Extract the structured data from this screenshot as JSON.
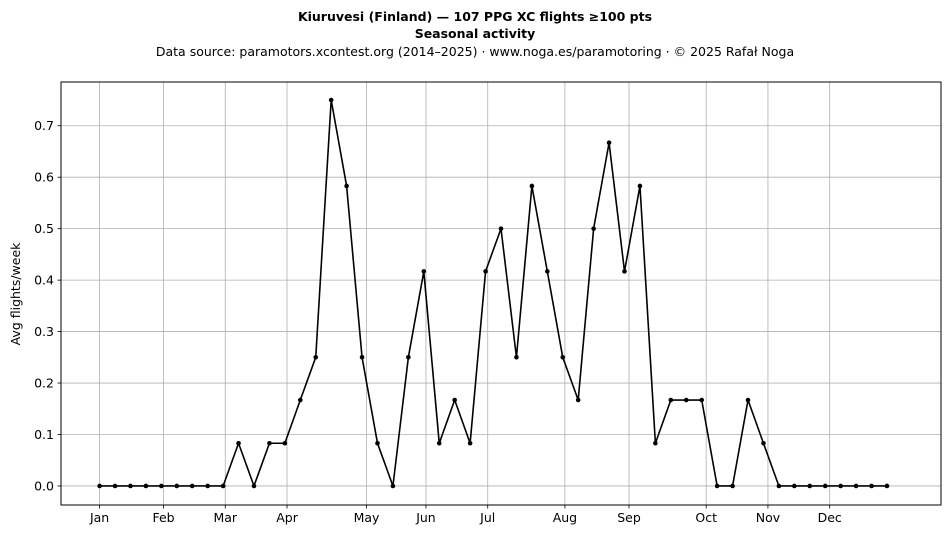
{
  "chart_data": {
    "type": "line",
    "title": "Kiuruvesi (Finland)  —  107 PPG XC flights ≥100 pts",
    "title_line2": "Seasonal activity",
    "subtitle": "Data source: paramotors.xcontest.org (2014–2025)  ·  www.noga.es/paramotoring  ·  © 2025 Rafał Noga",
    "xlabel": "",
    "ylabel": "Avg flights/week",
    "grid": true,
    "x_range": [
      -2.5,
      54.5
    ],
    "ylim": [
      -0.037,
      0.785
    ],
    "yticks": [
      0.0,
      0.1,
      0.2,
      0.3,
      0.4,
      0.5,
      0.6,
      0.7
    ],
    "ytick_labels": [
      "0.0",
      "0.1",
      "0.2",
      "0.3",
      "0.4",
      "0.5",
      "0.6",
      "0.7"
    ],
    "xticks": [
      {
        "label": "Jan",
        "x": 0
      },
      {
        "label": "Feb",
        "x": 4.14
      },
      {
        "label": "Mar",
        "x": 8.14
      },
      {
        "label": "Apr",
        "x": 12.14
      },
      {
        "label": "May",
        "x": 17.29
      },
      {
        "label": "Jun",
        "x": 21.14
      },
      {
        "label": "Jul",
        "x": 25.14
      },
      {
        "label": "Aug",
        "x": 30.14
      },
      {
        "label": "Sep",
        "x": 34.29
      },
      {
        "label": "Oct",
        "x": 39.29
      },
      {
        "label": "Nov",
        "x": 43.29
      },
      {
        "label": "Dec",
        "x": 47.29
      }
    ],
    "series": [
      {
        "color": "#000000",
        "values": [
          0,
          0,
          0,
          0,
          0,
          0,
          0,
          0,
          0,
          0.083,
          0,
          0.083,
          0.083,
          0.167,
          0.25,
          0.75,
          0.583,
          0.25,
          0.083,
          0,
          0.25,
          0.417,
          0.083,
          0.167,
          0.083,
          0.417,
          0.5,
          0.25,
          0.583,
          0.417,
          0.25,
          0.167,
          0.5,
          0.667,
          0.417,
          0.583,
          0.083,
          0.167,
          0.167,
          0.167,
          0,
          0,
          0.167,
          0.083,
          0,
          0,
          0,
          0,
          0,
          0,
          0,
          0
        ]
      }
    ]
  }
}
